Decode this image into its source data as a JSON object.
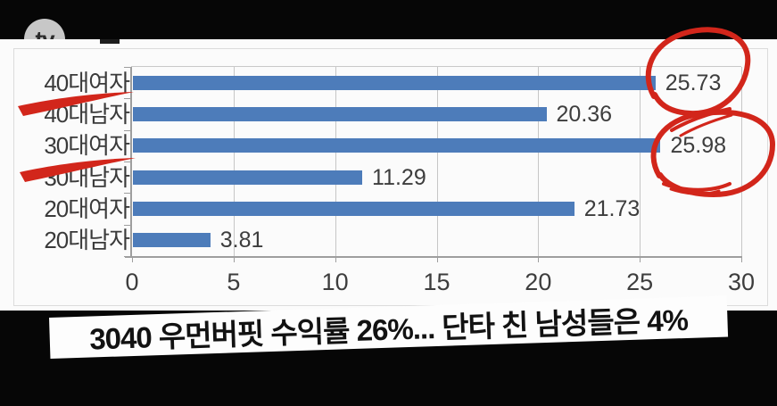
{
  "watermark": {
    "label": "tv"
  },
  "caption": {
    "text": "3040 우먼버핏 수익률 26%... 단타 친 남성들은 4%"
  },
  "colors": {
    "bar_blue": "#4d7cba",
    "annotation_red": "#d2261b",
    "panel_white": "#fbfbfb",
    "frame_black": "#060606"
  },
  "chart_data": {
    "type": "bar",
    "orientation": "horizontal",
    "title": "",
    "xlabel": "",
    "ylabel": "",
    "categories": [
      "40대여자",
      "40대남자",
      "30대여자",
      "30대남자",
      "20대여자",
      "20대남자"
    ],
    "values": [
      25.73,
      20.36,
      25.98,
      11.29,
      21.73,
      3.81
    ],
    "value_labels": [
      "25.73",
      "20.36",
      "25.98",
      "11.29",
      "21.73",
      "3.81"
    ],
    "x_ticks": [
      "0",
      "5",
      "10",
      "15",
      "20",
      "25",
      "30"
    ],
    "xlim": [
      0,
      30
    ],
    "grid": true,
    "bar_color": "#4d7cba",
    "annotations": {
      "circled_values": [
        "25.73",
        "25.98"
      ],
      "underlined_categories": [
        "40대여자",
        "30대여자"
      ],
      "color": "#d2261b"
    }
  }
}
